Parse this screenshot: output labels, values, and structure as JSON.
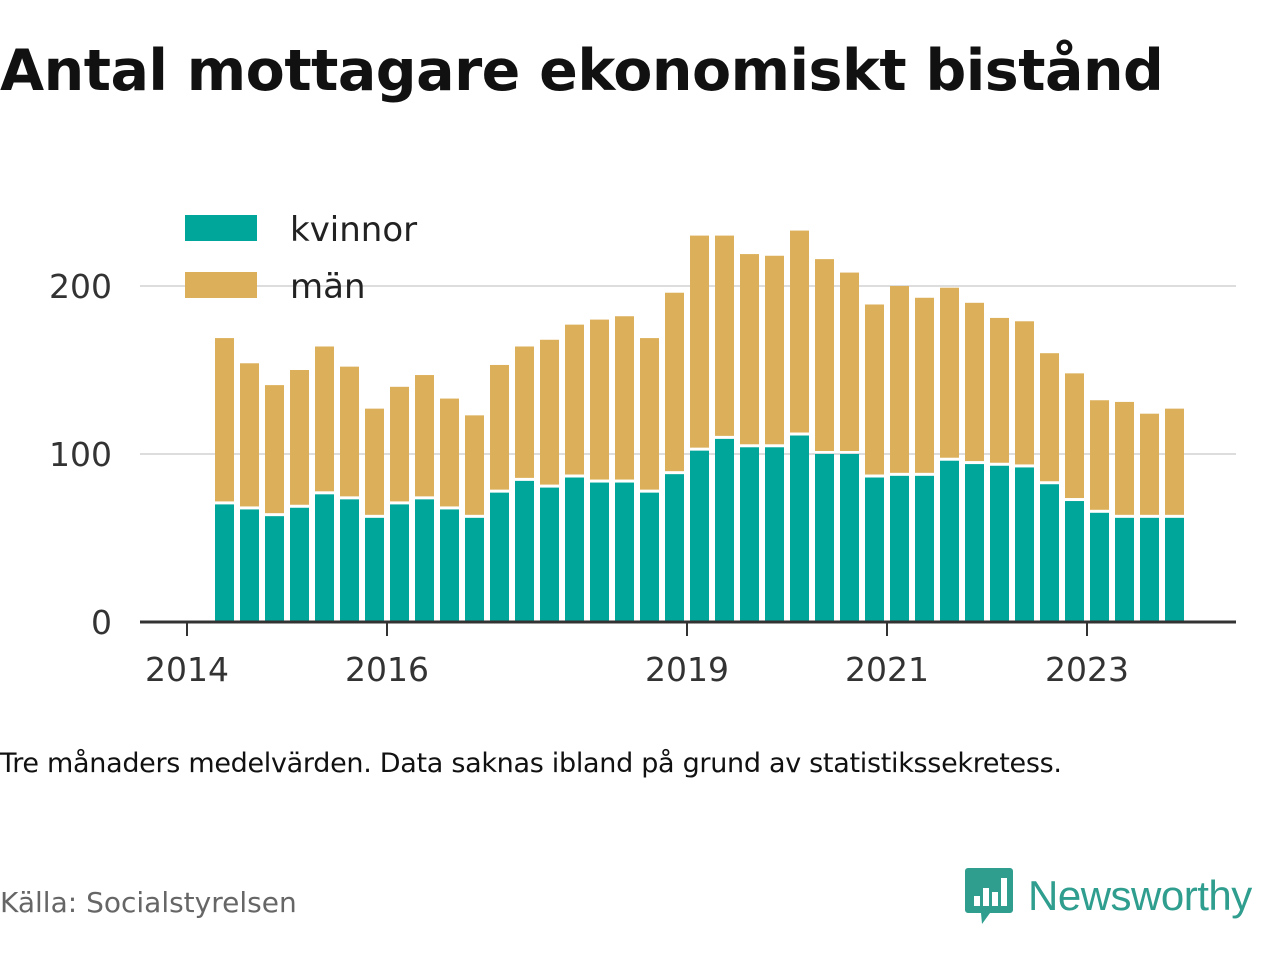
{
  "chart_data": {
    "type": "bar",
    "stacked": true,
    "title": "Antal mottagare ekonomiskt bistånd",
    "x_tick_labels": [
      "2014",
      "2016",
      "2019",
      "2021",
      "2023"
    ],
    "y_tick_labels": [
      "0",
      "100",
      "200"
    ],
    "ylim": [
      0,
      250
    ],
    "grid": true,
    "legend_position": "top-left",
    "colors": {
      "kvinnor": "#00a699",
      "män": "#dcb05a"
    },
    "categories": [
      "2014-Q2",
      "2014-Q3",
      "2014-Q4",
      "2015-Q1",
      "2015-Q2",
      "2015-Q3",
      "2015-Q4",
      "2016-Q1",
      "2016-Q2",
      "2016-Q3",
      "2016-Q4",
      "2017-Q1",
      "2017-Q2",
      "2017-Q3",
      "2017-Q4",
      "2018-Q1",
      "2018-Q2",
      "2018-Q3",
      "2018-Q4",
      "2019-Q1",
      "2019-Q2",
      "2019-Q3",
      "2019-Q4",
      "2020-Q1",
      "2020-Q2",
      "2020-Q3",
      "2020-Q4",
      "2021-Q1",
      "2021-Q2",
      "2021-Q3",
      "2021-Q4",
      "2022-Q1",
      "2022-Q2",
      "2022-Q3",
      "2022-Q4",
      "2023-Q1",
      "2023-Q2",
      "2023-Q3",
      "2023-Q4"
    ],
    "series": [
      {
        "name": "kvinnor",
        "values": [
          70,
          67,
          63,
          68,
          76,
          73,
          62,
          70,
          73,
          67,
          62,
          77,
          84,
          80,
          86,
          83,
          83,
          77,
          88,
          102,
          109,
          104,
          104,
          111,
          100,
          100,
          86,
          87,
          87,
          96,
          94,
          93,
          92,
          82,
          72,
          65,
          62,
          62,
          62
        ]
      },
      {
        "name": "män",
        "values": [
          99,
          87,
          78,
          82,
          88,
          79,
          65,
          70,
          74,
          66,
          61,
          76,
          80,
          88,
          91,
          97,
          99,
          92,
          108,
          128,
          121,
          115,
          114,
          122,
          116,
          108,
          103,
          113,
          106,
          103,
          96,
          88,
          87,
          78,
          76,
          67,
          69,
          62,
          65
        ]
      }
    ]
  },
  "note": "Tre månaders medelvärden. Data saknas ibland på grund av statistikssekretess.",
  "source": "Källa: Socialstyrelsen",
  "brand": {
    "name": "Newsworthy",
    "color": "#2f9e8f",
    "icon": "bar-chart-speech-bubble-icon"
  }
}
